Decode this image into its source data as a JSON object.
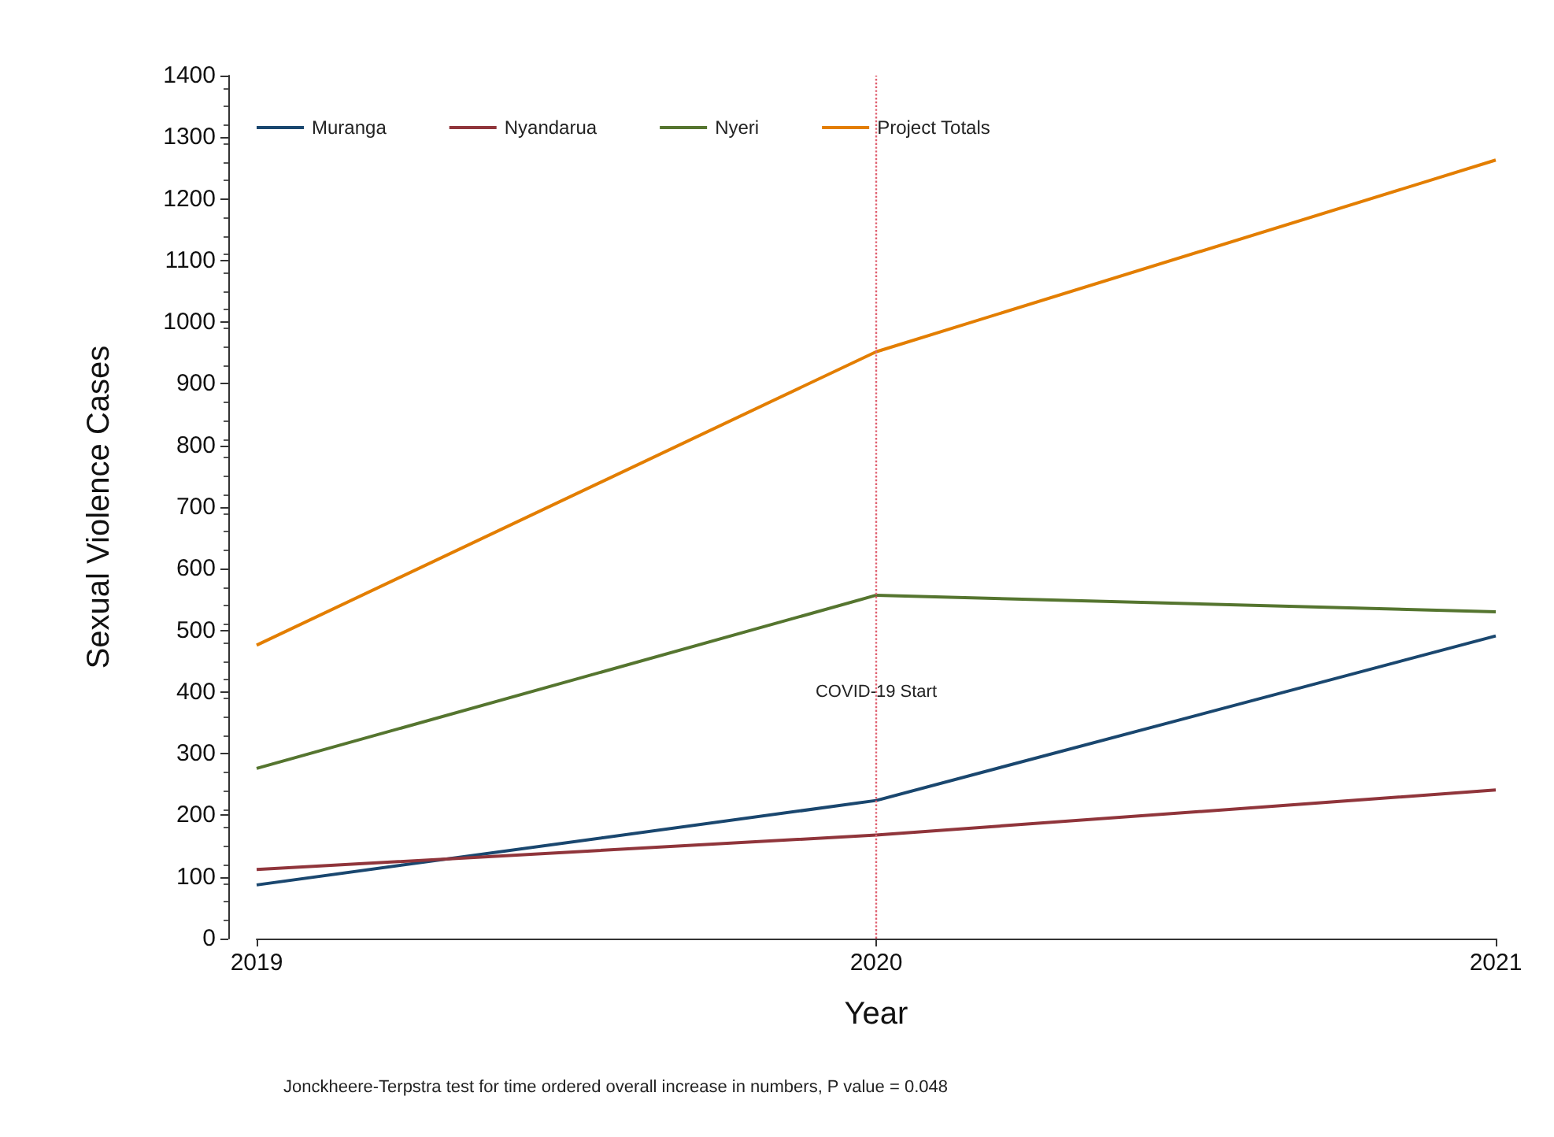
{
  "chart_data": {
    "type": "line",
    "xlabel": "Year",
    "ylabel": "Sexual Violence Cases",
    "x": [
      2019,
      2020,
      2021
    ],
    "series": [
      {
        "name": "Muranga",
        "color": "#1a476f",
        "values": [
          87,
          224,
          491
        ]
      },
      {
        "name": "Nyandarua",
        "color": "#90353b",
        "values": [
          112,
          168,
          241
        ]
      },
      {
        "name": "Nyeri",
        "color": "#55752f",
        "values": [
          276,
          557,
          530
        ]
      },
      {
        "name": "Project Totals",
        "color": "#e37e00",
        "values": [
          476,
          952,
          1263
        ]
      }
    ],
    "xlim": [
      2019,
      2021
    ],
    "xticks": [
      2019,
      2020,
      2021
    ],
    "ylim": [
      0,
      1400
    ],
    "yticks": [
      0,
      100,
      200,
      300,
      400,
      500,
      600,
      700,
      800,
      900,
      1000,
      1100,
      1200,
      1300,
      1400
    ],
    "ref_lines": [
      {
        "axis": "x",
        "value": 2020,
        "color": "#e06070",
        "line_style": "dotted"
      }
    ],
    "annotations": [
      {
        "text": "COVID-19 Start",
        "x": 2020,
        "y": 400
      },
      "Jonckheere-Terpstra test for time ordered overall increase in numbers, P value = 0.048"
    ],
    "legend": "top left",
    "grid": false,
    "marker": "none",
    "line_style": "solid"
  }
}
